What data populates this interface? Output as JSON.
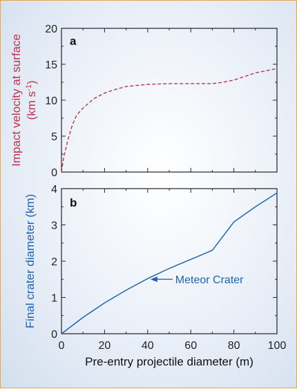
{
  "chart_data": [
    {
      "panel": "a",
      "type": "line",
      "ylabel_line1": "Impact velocity at surface",
      "ylabel_line2": "(km s",
      "ylabel_sup": "-1",
      "ylabel_close": ")",
      "xlim": [
        0,
        100
      ],
      "ylim": [
        0,
        20
      ],
      "yticks": [
        "0",
        "5",
        "10",
        "15",
        "20"
      ],
      "line_style": "dashed",
      "color": "#c0304a",
      "x": [
        0,
        1,
        3,
        5,
        7,
        10,
        15,
        20,
        25,
        30,
        40,
        50,
        60,
        70,
        75,
        80,
        90,
        100
      ],
      "y": [
        0,
        2,
        4.5,
        6.5,
        7.9,
        8.9,
        10.2,
        11.0,
        11.5,
        11.9,
        12.2,
        12.3,
        12.3,
        12.3,
        12.5,
        12.8,
        13.8,
        14.4
      ]
    },
    {
      "panel": "b",
      "type": "line",
      "ylabel": "Final crater diameter (km)",
      "xlabel": "Pre-entry projectile diameter (m)",
      "xlim": [
        0,
        100
      ],
      "ylim": [
        0,
        4
      ],
      "xticks": [
        "0",
        "20",
        "40",
        "60",
        "80",
        "100"
      ],
      "yticks": [
        "0",
        "1",
        "2",
        "3",
        "4"
      ],
      "line_style": "solid",
      "color": "#1f63b0",
      "x": [
        0,
        10,
        20,
        30,
        40,
        50,
        60,
        70,
        80,
        90,
        100
      ],
      "y": [
        0,
        0.45,
        0.85,
        1.2,
        1.52,
        1.8,
        2.05,
        2.3,
        3.08,
        3.5,
        3.88
      ],
      "annotation": {
        "text": "Meteor Crater",
        "x": 40,
        "y": 1.52
      }
    }
  ]
}
